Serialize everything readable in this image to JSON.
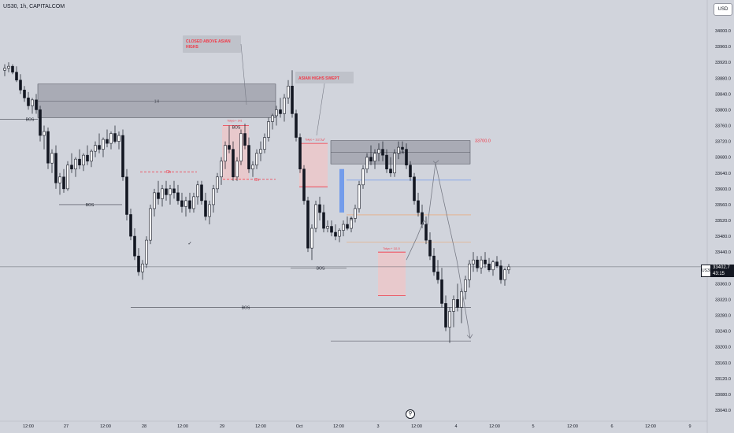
{
  "chart_title": "US30, 1h, CAPITALCOM",
  "currency": "USD",
  "current_price": {
    "symbol": "US30",
    "value": "33402.7",
    "countdown": "43:15"
  },
  "logo_glyph": "⚲",
  "chart_data": {
    "type": "candlestick",
    "y_ticks": [
      "34000.0",
      "33960.0",
      "33920.0",
      "33880.0",
      "33840.0",
      "33800.0",
      "33760.0",
      "33720.0",
      "33680.0",
      "33640.0",
      "33600.0",
      "33560.0",
      "33520.0",
      "33480.0",
      "33440.0",
      "33400.0",
      "33360.0",
      "33320.0",
      "33280.0",
      "33240.0",
      "33200.0",
      "33160.0",
      "33120.0",
      "33080.0",
      "33040.0"
    ],
    "x_ticks": [
      "12:00",
      "27",
      "12:00",
      "28",
      "12:00",
      "29",
      "12:00",
      "Oct",
      "12:00",
      "3",
      "12:00",
      "4",
      "12:00",
      "5",
      "12:00",
      "6",
      "12:00",
      "9"
    ],
    "ylim": [
      33020,
      34020
    ],
    "last": 33402.7,
    "candles": [
      [
        33900,
        33915,
        33885,
        33905
      ],
      [
        33905,
        33920,
        33895,
        33910
      ],
      [
        33910,
        33915,
        33890,
        33895
      ],
      [
        33895,
        33910,
        33870,
        33875
      ],
      [
        33875,
        33890,
        33840,
        33850
      ],
      [
        33850,
        33860,
        33820,
        33830
      ],
      [
        33830,
        33845,
        33800,
        33810
      ],
      [
        33810,
        33830,
        33790,
        33825
      ],
      [
        33825,
        33840,
        33790,
        33800
      ],
      [
        33800,
        33810,
        33720,
        33735
      ],
      [
        33735,
        33760,
        33700,
        33745
      ],
      [
        33745,
        33755,
        33650,
        33665
      ],
      [
        33665,
        33700,
        33640,
        33690
      ],
      [
        33690,
        33710,
        33600,
        33615
      ],
      [
        33615,
        33640,
        33585,
        33630
      ],
      [
        33630,
        33650,
        33590,
        33600
      ],
      [
        33600,
        33670,
        33595,
        33660
      ],
      [
        33660,
        33690,
        33640,
        33650
      ],
      [
        33650,
        33680,
        33630,
        33675
      ],
      [
        33675,
        33700,
        33650,
        33660
      ],
      [
        33660,
        33690,
        33645,
        33685
      ],
      [
        33685,
        33710,
        33660,
        33670
      ],
      [
        33670,
        33700,
        33655,
        33695
      ],
      [
        33695,
        33720,
        33680,
        33710
      ],
      [
        33710,
        33740,
        33690,
        33700
      ],
      [
        33700,
        33730,
        33680,
        33725
      ],
      [
        33725,
        33750,
        33705,
        33715
      ],
      [
        33715,
        33745,
        33700,
        33740
      ],
      [
        33740,
        33760,
        33715,
        33720
      ],
      [
        33720,
        33745,
        33700,
        33735
      ],
      [
        33735,
        33750,
        33620,
        33630
      ],
      [
        33630,
        33650,
        33520,
        33535
      ],
      [
        33535,
        33550,
        33470,
        33480
      ],
      [
        33480,
        33500,
        33420,
        33430
      ],
      [
        33430,
        33450,
        33380,
        33390
      ],
      [
        33390,
        33420,
        33370,
        33410
      ],
      [
        33410,
        33480,
        33400,
        33470
      ],
      [
        33470,
        33560,
        33460,
        33550
      ],
      [
        33550,
        33600,
        33530,
        33590
      ],
      [
        33590,
        33620,
        33560,
        33575
      ],
      [
        33575,
        33610,
        33555,
        33600
      ],
      [
        33600,
        33620,
        33570,
        33585
      ],
      [
        33585,
        33610,
        33560,
        33600
      ],
      [
        33600,
        33620,
        33575,
        33590
      ],
      [
        33590,
        33610,
        33560,
        33570
      ],
      [
        33570,
        33590,
        33540,
        33555
      ],
      [
        33555,
        33580,
        33530,
        33570
      ],
      [
        33570,
        33590,
        33540,
        33550
      ],
      [
        33550,
        33590,
        33540,
        33580
      ],
      [
        33580,
        33620,
        33560,
        33610
      ],
      [
        33610,
        33620,
        33560,
        33570
      ],
      [
        33570,
        33590,
        33520,
        33530
      ],
      [
        33530,
        33570,
        33510,
        33560
      ],
      [
        33560,
        33610,
        33540,
        33600
      ],
      [
        33600,
        33640,
        33590,
        33630
      ],
      [
        33630,
        33680,
        33610,
        33670
      ],
      [
        33670,
        33720,
        33650,
        33710
      ],
      [
        33710,
        33760,
        33690,
        33700
      ],
      [
        33700,
        33720,
        33620,
        33630
      ],
      [
        33630,
        33680,
        33620,
        33670
      ],
      [
        33670,
        33750,
        33660,
        33740
      ],
      [
        33740,
        33765,
        33700,
        33710
      ],
      [
        33710,
        33730,
        33640,
        33650
      ],
      [
        33650,
        33670,
        33630,
        33660
      ],
      [
        33660,
        33700,
        33650,
        33690
      ],
      [
        33690,
        33720,
        33670,
        33700
      ],
      [
        33700,
        33740,
        33690,
        33730
      ],
      [
        33730,
        33780,
        33720,
        33770
      ],
      [
        33770,
        33790,
        33750,
        33785
      ],
      [
        33785,
        33810,
        33760,
        33800
      ],
      [
        33800,
        33830,
        33780,
        33790
      ],
      [
        33790,
        33840,
        33770,
        33830
      ],
      [
        33830,
        33875,
        33815,
        33860
      ],
      [
        33860,
        33900,
        33780,
        33790
      ],
      [
        33790,
        33800,
        33720,
        33730
      ],
      [
        33730,
        33740,
        33640,
        33650
      ],
      [
        33650,
        33660,
        33560,
        33570
      ],
      [
        33570,
        33580,
        33440,
        33450
      ],
      [
        33450,
        33510,
        33420,
        33500
      ],
      [
        33500,
        33570,
        33490,
        33560
      ],
      [
        33560,
        33580,
        33520,
        33540
      ],
      [
        33540,
        33560,
        33490,
        33500
      ],
      [
        33500,
        33520,
        33490,
        33505
      ],
      [
        33505,
        33520,
        33480,
        33490
      ],
      [
        33490,
        33510,
        33470,
        33480
      ],
      [
        33480,
        33500,
        33465,
        33495
      ],
      [
        33495,
        33520,
        33480,
        33510
      ],
      [
        33510,
        33530,
        33495,
        33500
      ],
      [
        33500,
        33530,
        33490,
        33525
      ],
      [
        33525,
        33560,
        33515,
        33550
      ],
      [
        33550,
        33620,
        33540,
        33610
      ],
      [
        33610,
        33660,
        33600,
        33650
      ],
      [
        33650,
        33690,
        33640,
        33680
      ],
      [
        33680,
        33710,
        33660,
        33670
      ],
      [
        33670,
        33700,
        33650,
        33690
      ],
      [
        33690,
        33715,
        33670,
        33700
      ],
      [
        33700,
        33720,
        33670,
        33685
      ],
      [
        33685,
        33700,
        33640,
        33650
      ],
      [
        33650,
        33680,
        33630,
        33640
      ],
      [
        33640,
        33700,
        33630,
        33690
      ],
      [
        33690,
        33720,
        33675,
        33705
      ],
      [
        33705,
        33720,
        33690,
        33700
      ],
      [
        33700,
        33715,
        33650,
        33660
      ],
      [
        33660,
        33670,
        33620,
        33630
      ],
      [
        33630,
        33640,
        33560,
        33570
      ],
      [
        33570,
        33590,
        33530,
        33540
      ],
      [
        33540,
        33560,
        33500,
        33510
      ],
      [
        33510,
        33530,
        33460,
        33470
      ],
      [
        33470,
        33490,
        33420,
        33430
      ],
      [
        33430,
        33450,
        33380,
        33390
      ],
      [
        33390,
        33420,
        33360,
        33370
      ],
      [
        33370,
        33400,
        33300,
        33310
      ],
      [
        33310,
        33330,
        33240,
        33250
      ],
      [
        33250,
        33300,
        33210,
        33290
      ],
      [
        33290,
        33330,
        33250,
        33320
      ],
      [
        33320,
        33360,
        33290,
        33300
      ],
      [
        33300,
        33350,
        33260,
        33340
      ],
      [
        33340,
        33380,
        33320,
        33370
      ],
      [
        33370,
        33420,
        33350,
        33410
      ],
      [
        33410,
        33440,
        33390,
        33420
      ],
      [
        33420,
        33430,
        33390,
        33400
      ],
      [
        33400,
        33430,
        33385,
        33420
      ],
      [
        33420,
        33440,
        33400,
        33410
      ],
      [
        33410,
        33425,
        33390,
        33395
      ],
      [
        33395,
        33420,
        33380,
        33415
      ],
      [
        33415,
        33430,
        33400,
        33405
      ],
      [
        33405,
        33420,
        33360,
        33370
      ],
      [
        33370,
        33400,
        33355,
        33395
      ],
      [
        33395,
        33410,
        33385,
        33402.7
      ]
    ]
  },
  "annotations": {
    "closed_above_asian_1": "CLOSED ABOVE ASIAN",
    "closed_above_asian_2": "HIGHS",
    "asian_highs_swept": "ASIAN HIGHS SWEPT",
    "target_price": "33700.0",
    "zone_1h_left": "1H",
    "zone_1h_right": "1H",
    "bos_1": "BOS",
    "bos_2": "BOS",
    "bos_3": "BOS",
    "bos_4": "BOS",
    "bos_5": "BOS",
    "ch_1": "Ch",
    "ch_2": "Ch",
    "tokyo_1": "Tokyo + 141",
    "tokyo_2": "Tokyo + 112.5",
    "tokyo_3": "Tokyo + 111.5",
    "x_mark": "x",
    "check_1": "✓",
    "check_2": "✓"
  },
  "colors": {
    "background": "#d1d4dc",
    "candle": "#131722",
    "red": "#f23645",
    "zone_fill": "#787b86",
    "box_fill": "#f7c1c1",
    "blue": "#5b8def"
  }
}
